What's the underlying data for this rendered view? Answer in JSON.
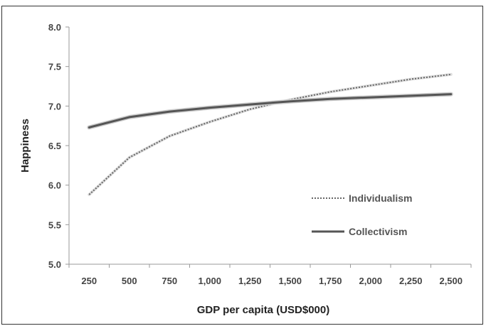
{
  "chart_data": {
    "type": "line",
    "title": "",
    "xlabel": "GDP per capita (USD$000)",
    "ylabel": "Happiness",
    "x": [
      250,
      500,
      750,
      1000,
      1250,
      1500,
      1750,
      2000,
      2250,
      2500
    ],
    "x_tick_labels": [
      "250",
      "500",
      "750",
      "1,000",
      "1,250",
      "1,500",
      "1,750",
      "2,000",
      "2,250",
      "2,500"
    ],
    "ylim": [
      5.0,
      8.0
    ],
    "y_ticks": [
      5.0,
      5.5,
      6.0,
      6.5,
      7.0,
      7.5,
      8.0
    ],
    "y_tick_labels": [
      "5.0",
      "5.5",
      "6.0",
      "6.5",
      "7.0",
      "7.5",
      "8.0"
    ],
    "grid": false,
    "legend_position": "bottom-right",
    "series": [
      {
        "name": "Individualism",
        "style": "dotted",
        "color": "#666666",
        "values": [
          5.88,
          6.35,
          6.62,
          6.8,
          6.96,
          7.08,
          7.18,
          7.26,
          7.34,
          7.4
        ]
      },
      {
        "name": "Collectivism",
        "style": "solid",
        "color": "#555555",
        "values": [
          6.73,
          6.86,
          6.93,
          6.98,
          7.02,
          7.06,
          7.09,
          7.11,
          7.13,
          7.15
        ]
      }
    ]
  }
}
